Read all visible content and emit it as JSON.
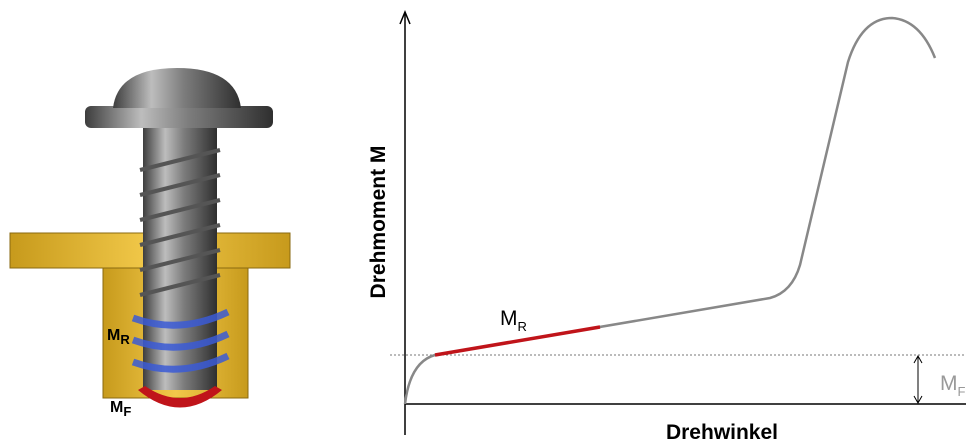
{
  "screw": {
    "friction_label": {
      "base": "M",
      "sub": "R"
    },
    "head_label": {
      "base": "M",
      "sub": "F"
    }
  },
  "chart": {
    "y_label": "Drehmoment M",
    "x_label": "Drehwinkel",
    "curve_label": {
      "base": "M",
      "sub": "R"
    },
    "offset_label": {
      "base": "M",
      "sub": "F"
    }
  }
}
